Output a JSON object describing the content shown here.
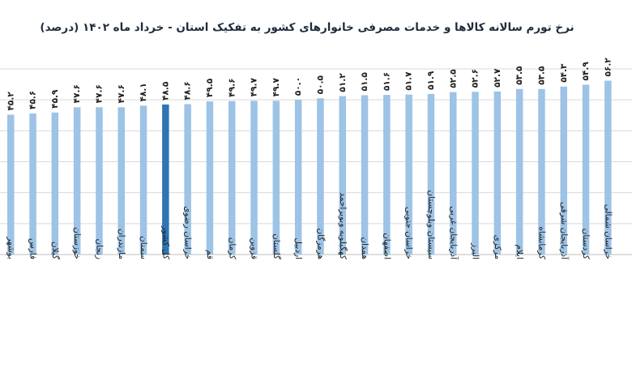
{
  "chart_data": {
    "type": "bar",
    "title": "نرخ تورم سالانه کالاها و خدمات مصرفی خانوارهای کشور به تفکیک استان - خرداد ماه ۱۴۰۲ (درصد)",
    "xlabel": "",
    "ylabel": "",
    "ylim": [
      0,
      60
    ],
    "grid": true,
    "legend": "none",
    "categories": [
      "بوشهر",
      "فارس",
      "گیلان",
      "خوزستان",
      "زنجان",
      "مازندران",
      "سمنان",
      "کل کشور",
      "خراسان رضوی",
      "قم",
      "کرمان",
      "قزوین",
      "گلستان",
      "اردبیل",
      "هرمزگان",
      "کهگیلویه وبویراحمد",
      "همدان",
      "اصفهان",
      "خراسان جنوبی",
      "سیستان وبلوچستان",
      "آذربایجان غربی",
      "البرز",
      "مرکزی",
      "ایلام",
      "کرمانشاه",
      "آذربایجان شرقی",
      "کردستان",
      "خراسان شمالی"
    ],
    "values": [
      45.2,
      45.6,
      45.9,
      47.6,
      47.6,
      47.6,
      48.1,
      48.5,
      48.6,
      49.5,
      49.6,
      49.7,
      49.7,
      50.0,
      50.5,
      51.2,
      51.5,
      51.6,
      51.7,
      51.9,
      52.5,
      52.6,
      52.7,
      53.5,
      53.5,
      54.3,
      54.9,
      56.2
    ],
    "value_labels": [
      "۴۵.۲",
      "۴۵.۶",
      "۴۵.۹",
      "۴۷.۶",
      "۴۷.۶",
      "۴۷.۶",
      "۴۸.۱",
      "۴۸.۵",
      "۴۸.۶",
      "۴۹.۵",
      "۴۹.۶",
      "۴۹.۷",
      "۴۹.۷",
      "۵۰.۰",
      "۵۰.۵",
      "۵۱.۲",
      "۵۱.۵",
      "۵۱.۶",
      "۵۱.۷",
      "۵۱.۹",
      "۵۲.۵",
      "۵۲.۶",
      "۵۲.۷",
      "۵۳.۵",
      "۵۳.۵",
      "۵۴.۳",
      "۵۴.۹",
      "۵۶.۲"
    ],
    "highlight_category": "کل کشور",
    "colors": {
      "bar": "#9dc3e6",
      "highlight": "#2e75b6",
      "grid": "#d9d9d9"
    }
  }
}
